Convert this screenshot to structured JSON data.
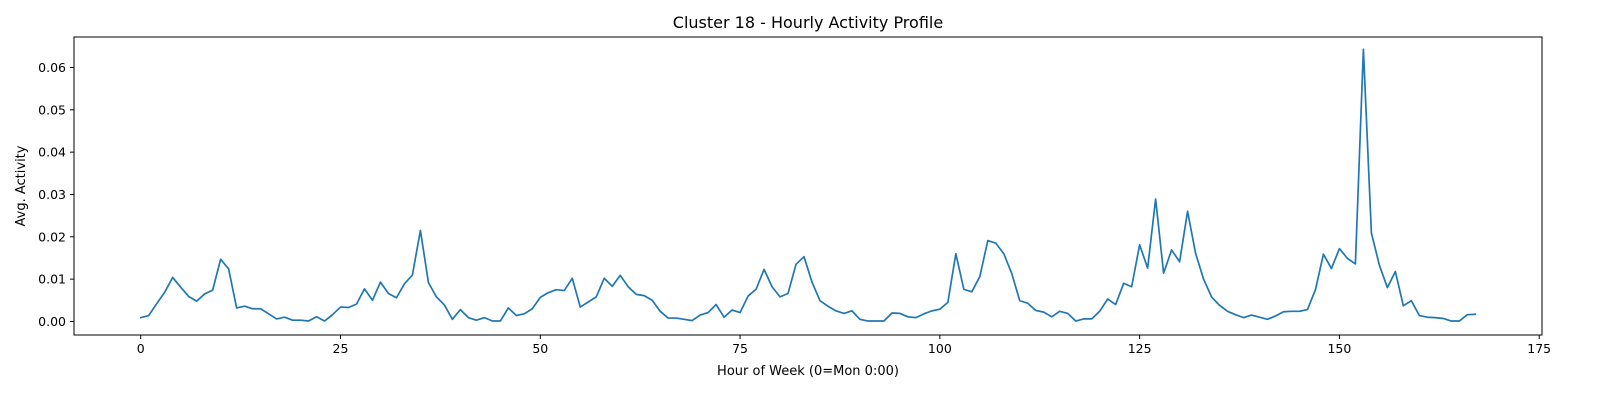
{
  "chart_data": {
    "type": "line",
    "title": "Cluster 18 - Hourly Activity Profile",
    "xlabel": "Hour of Week (0=Mon 0:00)",
    "ylabel": "Avg. Activity",
    "xlim": [
      -8.35,
      175.35
    ],
    "ylim": [
      -0.0032,
      0.0672
    ],
    "xticks": [
      0,
      25,
      50,
      75,
      100,
      125,
      150,
      175
    ],
    "xtick_labels": [
      "0",
      "25",
      "50",
      "75",
      "100",
      "125",
      "150",
      "175"
    ],
    "yticks": [
      0.0,
      0.01,
      0.02,
      0.03,
      0.04,
      0.05,
      0.06
    ],
    "ytick_labels": [
      "0.00",
      "0.01",
      "0.02",
      "0.03",
      "0.04",
      "0.05",
      "0.06"
    ],
    "grid": false,
    "legend": "none",
    "series": [
      {
        "color": "#1f77b4",
        "x": [
          0,
          1,
          2,
          3,
          4,
          5,
          6,
          7,
          8,
          9,
          10,
          11,
          12,
          13,
          14,
          15,
          16,
          17,
          18,
          19,
          20,
          21,
          22,
          23,
          24,
          25,
          26,
          27,
          28,
          29,
          30,
          31,
          32,
          33,
          34,
          35,
          36,
          37,
          38,
          39,
          40,
          41,
          42,
          43,
          44,
          45,
          46,
          47,
          48,
          49,
          50,
          51,
          52,
          53,
          54,
          55,
          56,
          57,
          58,
          59,
          60,
          61,
          62,
          63,
          64,
          65,
          66,
          67,
          68,
          69,
          70,
          71,
          72,
          73,
          74,
          75,
          76,
          77,
          78,
          79,
          80,
          81,
          82,
          83,
          84,
          85,
          86,
          87,
          88,
          89,
          90,
          91,
          92,
          93,
          94,
          95,
          96,
          97,
          98,
          99,
          100,
          101,
          102,
          103,
          104,
          105,
          106,
          107,
          108,
          109,
          110,
          111,
          112,
          113,
          114,
          115,
          116,
          117,
          118,
          119,
          120,
          121,
          122,
          123,
          124,
          125,
          126,
          127,
          128,
          129,
          130,
          131,
          132,
          133,
          134,
          135,
          136,
          137,
          138,
          139,
          140,
          141,
          142,
          143,
          144,
          145,
          146,
          147,
          148,
          149,
          150,
          151,
          152,
          153,
          154,
          155,
          156,
          157,
          158,
          159,
          160,
          161,
          162,
          163,
          164,
          165,
          166,
          167
        ],
        "values": [
          0.0009,
          0.0014,
          0.0042,
          0.0069,
          0.0104,
          0.0081,
          0.0059,
          0.0048,
          0.0065,
          0.0074,
          0.0147,
          0.0124,
          0.0032,
          0.0036,
          0.003,
          0.003,
          0.0018,
          0.0006,
          0.001,
          0.0003,
          0.0003,
          0.0001,
          0.0011,
          0.0001,
          0.0016,
          0.0034,
          0.0033,
          0.0041,
          0.0077,
          0.005,
          0.0093,
          0.0066,
          0.0056,
          0.0089,
          0.011,
          0.0215,
          0.0092,
          0.0058,
          0.0039,
          0.0005,
          0.0028,
          0.0009,
          0.0003,
          0.0009,
          0.0001,
          0.0001,
          0.0032,
          0.0014,
          0.0018,
          0.003,
          0.0057,
          0.0068,
          0.0075,
          0.0073,
          0.0102,
          0.0034,
          0.0046,
          0.0058,
          0.0102,
          0.0083,
          0.0109,
          0.0082,
          0.0064,
          0.0061,
          0.005,
          0.0024,
          0.0008,
          0.0008,
          0.0005,
          0.0002,
          0.0015,
          0.0021,
          0.004,
          0.001,
          0.0027,
          0.0021,
          0.006,
          0.0076,
          0.0123,
          0.0082,
          0.0058,
          0.0066,
          0.0135,
          0.0153,
          0.0093,
          0.0049,
          0.0036,
          0.0025,
          0.0019,
          0.0025,
          0.0005,
          0.0001,
          0.0001,
          0.0001,
          0.002,
          0.0019,
          0.0011,
          0.0009,
          0.0018,
          0.0025,
          0.0029,
          0.0045,
          0.016,
          0.0076,
          0.007,
          0.0106,
          0.0191,
          0.0185,
          0.016,
          0.0113,
          0.0049,
          0.0043,
          0.0026,
          0.0022,
          0.0011,
          0.0024,
          0.0019,
          0.0001,
          0.0006,
          0.0006,
          0.0024,
          0.0053,
          0.004,
          0.009,
          0.0082,
          0.0181,
          0.0126,
          0.0289,
          0.0114,
          0.0169,
          0.0141,
          0.026,
          0.0161,
          0.01,
          0.0058,
          0.0038,
          0.0024,
          0.0016,
          0.0009,
          0.0015,
          0.001,
          0.0005,
          0.0013,
          0.0023,
          0.0024,
          0.0024,
          0.0028,
          0.0075,
          0.0159,
          0.0125,
          0.0172,
          0.0149,
          0.0136,
          0.0643,
          0.0209,
          0.0133,
          0.008,
          0.0118,
          0.0037,
          0.0049,
          0.0014,
          0.001,
          0.0009,
          0.0007,
          0.0001,
          0.0001,
          0.0016,
          0.0017
        ]
      }
    ]
  }
}
